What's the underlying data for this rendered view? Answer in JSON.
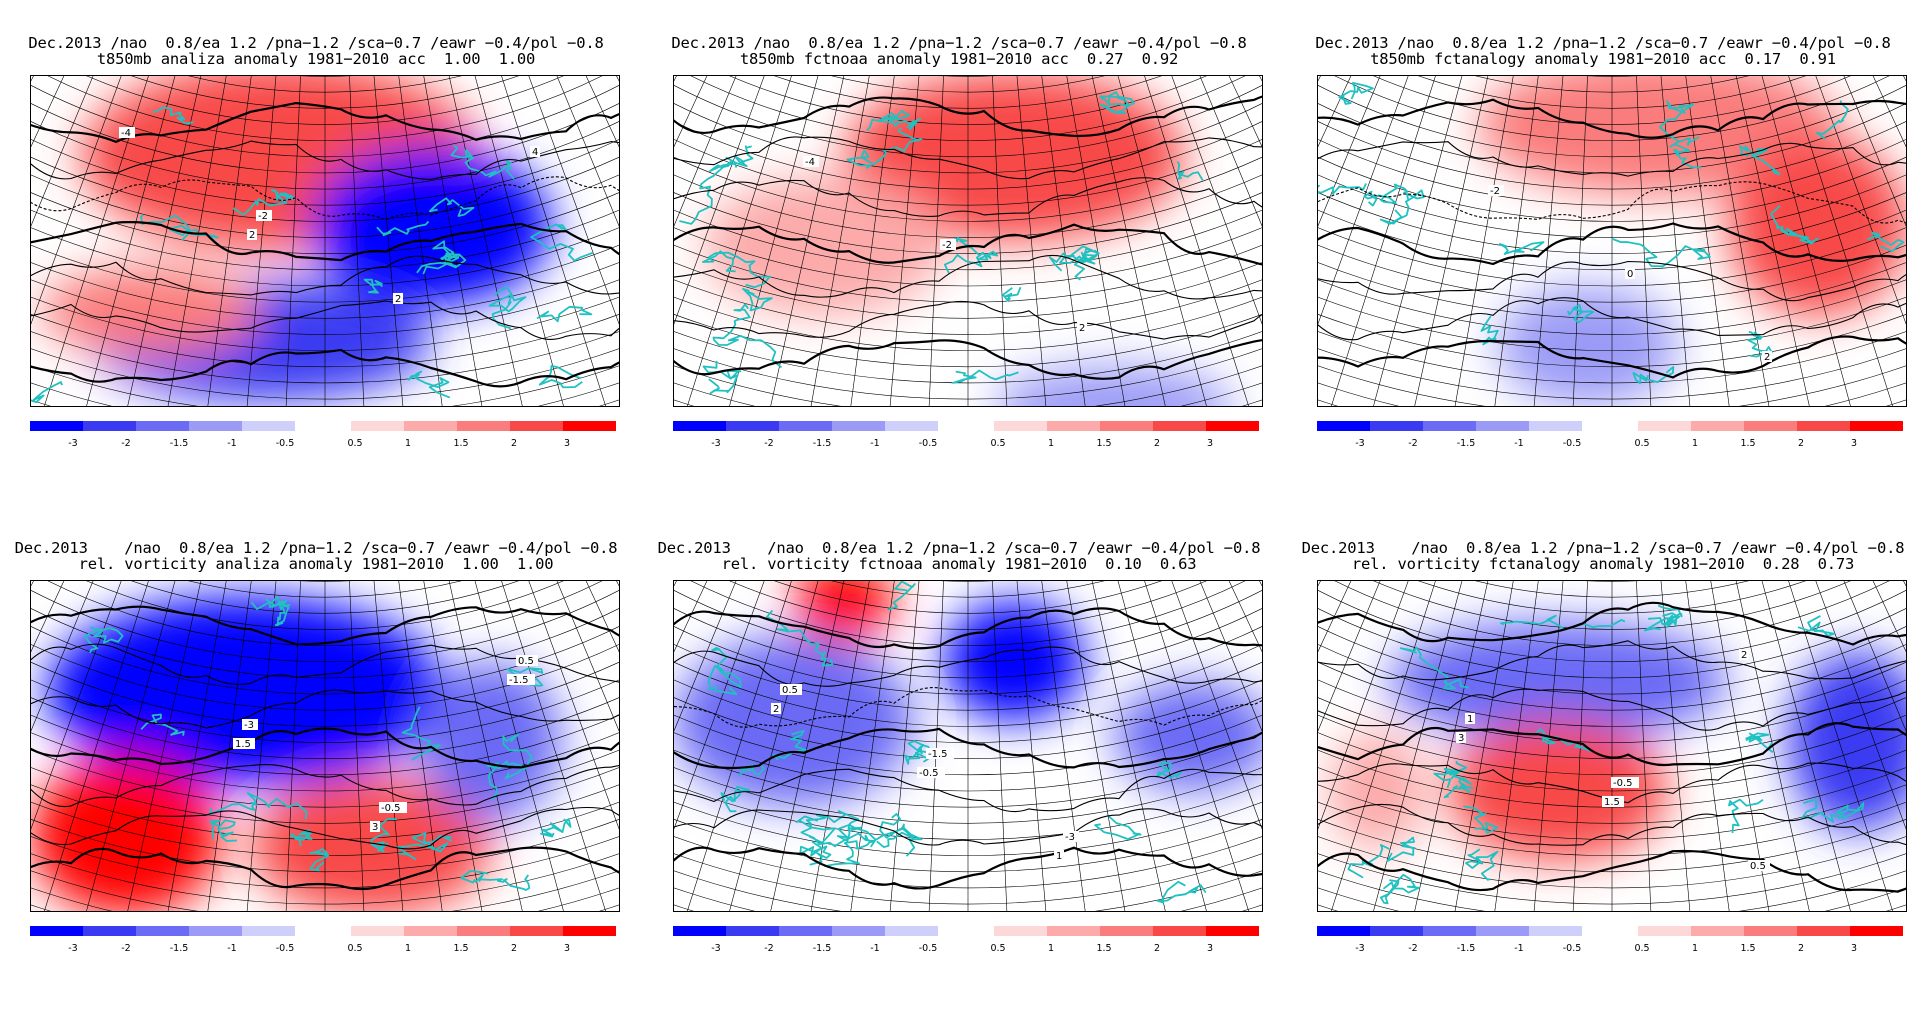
{
  "panels": [
    {
      "line1": "Dec.2013 /nao  0.8/ea 1.2 /pna−1.2 /sca−0.7 /eawr −0.4/pol −0.8",
      "line2": "t850mb analiza anomaly 1981−2010 acc  1.00  1.00",
      "variable": "t850mb",
      "source": "analiza",
      "acc": [
        1.0,
        1.0
      ],
      "contour_labels": [
        "-4",
        "-2",
        "2",
        "4",
        "2"
      ]
    },
    {
      "line1": "Dec.2013 /nao  0.8/ea 1.2 /pna−1.2 /sca−0.7 /eawr −0.4/pol −0.8",
      "line2": "t850mb fctnoaa anomaly 1981−2010 acc  0.27  0.92",
      "variable": "t850mb",
      "source": "fctnoaa",
      "acc": [
        0.27,
        0.92
      ],
      "contour_labels": [
        "-4",
        "-2",
        "2"
      ]
    },
    {
      "line1": "Dec.2013 /nao  0.8/ea 1.2 /pna−1.2 /sca−0.7 /eawr −0.4/pol −0.8",
      "line2": "t850mb fctanalogy anomaly 1981−2010 acc  0.17  0.91",
      "variable": "t850mb",
      "source": "fctanalogy",
      "acc": [
        0.17,
        0.91
      ],
      "contour_labels": [
        "-2",
        "0",
        "2"
      ]
    },
    {
      "line1": "Dec.2013    /nao  0.8/ea 1.2 /pna−1.2 /sca−0.7 /eawr −0.4/pol −0.8",
      "line2": "rel. vorticity analiza anomaly 1981−2010  1.00  1.00",
      "variable": "rel. vorticity",
      "source": "analiza",
      "acc": [
        1.0,
        1.0
      ],
      "contour_labels": [
        "-3",
        "-0.5",
        "0.5",
        "1.5",
        "3",
        "-1.5"
      ]
    },
    {
      "line1": "Dec.2013    /nao  0.8/ea 1.2 /pna−1.2 /sca−0.7 /eawr −0.4/pol −0.8",
      "line2": "rel. vorticity fctnoaa anomaly 1981−2010  0.10  0.63",
      "variable": "rel. vorticity",
      "source": "fctnoaa",
      "acc": [
        0.1,
        0.63
      ],
      "contour_labels": [
        "-1.5",
        "-3",
        "0.5",
        "-0.5",
        "1",
        "2"
      ]
    },
    {
      "line1": "Dec.2013    /nao  0.8/ea 1.2 /pna−1.2 /sca−0.7 /eawr −0.4/pol −0.8",
      "line2": "rel. vorticity fctanalogy anomaly 1981−2010  0.28  0.73",
      "variable": "rel. vorticity",
      "source": "fctanalogy",
      "acc": [
        0.28,
        0.73
      ],
      "contour_labels": [
        "-0.5",
        "0.5",
        "1",
        "1.5",
        "2",
        "3"
      ]
    }
  ],
  "colorbar": {
    "neg_colors": [
      "#0000ff",
      "#3a3af2",
      "#6b6bf5",
      "#9b9bf7",
      "#cfcffb"
    ],
    "pos_colors": [
      "#fdd8d8",
      "#fcaaaa",
      "#fa7c7c",
      "#f84848",
      "#ff0000"
    ],
    "neg_labels": [
      "-3",
      "-2",
      "-1.5",
      "-1",
      "-0.5"
    ],
    "pos_labels": [
      "0.5",
      "1",
      "1.5",
      "2",
      "3"
    ]
  },
  "colors": {
    "coastline": "#1fc1c1",
    "contour": "#000000",
    "grid": "#000000"
  },
  "anomaly_fields": [
    [
      {
        "kind": "warm",
        "lvl": 3
      },
      {
        "kind": "cold",
        "lvl": 4
      },
      {
        "kind": "cold",
        "lvl": 3
      },
      {
        "kind": "warm",
        "lvl": 2
      }
    ],
    [
      {
        "kind": "warm",
        "lvl": 3
      },
      {
        "kind": "warm",
        "lvl": 1
      },
      {
        "kind": "cold",
        "lvl": 1
      }
    ],
    [
      {
        "kind": "warm",
        "lvl": 2
      },
      {
        "kind": "warm",
        "lvl": 3
      },
      {
        "kind": "cold",
        "lvl": 1
      }
    ],
    [
      {
        "kind": "cold",
        "lvl": 4
      },
      {
        "kind": "warm",
        "lvl": 4
      },
      {
        "kind": "warm",
        "lvl": 3
      },
      {
        "kind": "cold",
        "lvl": 2
      }
    ],
    [
      {
        "kind": "cold",
        "lvl": 4
      },
      {
        "kind": "cold",
        "lvl": 2
      },
      {
        "kind": "warm",
        "lvl": 4
      },
      {
        "kind": "cold",
        "lvl": 2
      }
    ],
    [
      {
        "kind": "cold",
        "lvl": 2
      },
      {
        "kind": "warm",
        "lvl": 3
      },
      {
        "kind": "cold",
        "lvl": 3
      },
      {
        "kind": "warm",
        "lvl": 1
      }
    ]
  ]
}
